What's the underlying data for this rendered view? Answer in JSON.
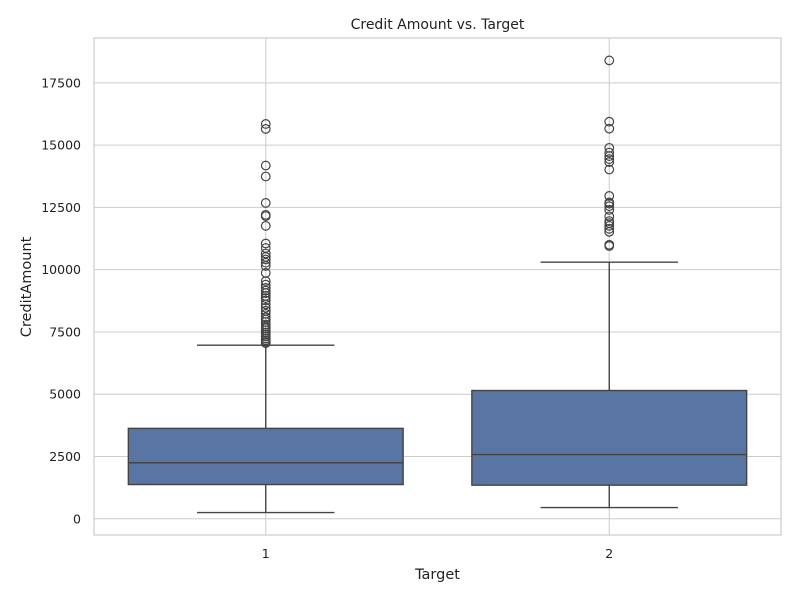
{
  "chart_data": {
    "type": "box",
    "title": "Credit Amount vs. Target",
    "xlabel": "Target",
    "ylabel": "CreditAmount",
    "categories": [
      "1",
      "2"
    ],
    "ylim": [
      -650,
      19300
    ],
    "yticks": [
      0,
      2500,
      5000,
      7500,
      10000,
      12500,
      15000,
      17500
    ],
    "grid": true,
    "box_color": "#5975a4",
    "line_color": "#444444",
    "boxes": [
      {
        "category": "1",
        "whisker_low": 250,
        "q1": 1375,
        "median": 2250,
        "q3": 3630,
        "whisker_high": 6970,
        "outliers": [
          7050,
          7100,
          7170,
          7240,
          7320,
          7400,
          7480,
          7570,
          7650,
          7720,
          7800,
          7900,
          8000,
          8090,
          8230,
          8350,
          8470,
          8610,
          8760,
          8860,
          8950,
          9060,
          9160,
          9270,
          9400,
          9540,
          9870,
          10150,
          10280,
          10410,
          10510,
          10650,
          10870,
          11050,
          11760,
          12150,
          12200,
          12680,
          13740,
          14180,
          15650,
          15850
        ]
      },
      {
        "category": "2",
        "whisker_low": 450,
        "q1": 1350,
        "median": 2580,
        "q3": 5150,
        "whisker_high": 10300,
        "outliers": [
          10950,
          11000,
          11520,
          11640,
          11760,
          11870,
          11950,
          12140,
          12400,
          12550,
          12650,
          12700,
          12960,
          14020,
          14320,
          14440,
          14560,
          14700,
          14890,
          15660,
          15940,
          18400
        ]
      }
    ]
  }
}
